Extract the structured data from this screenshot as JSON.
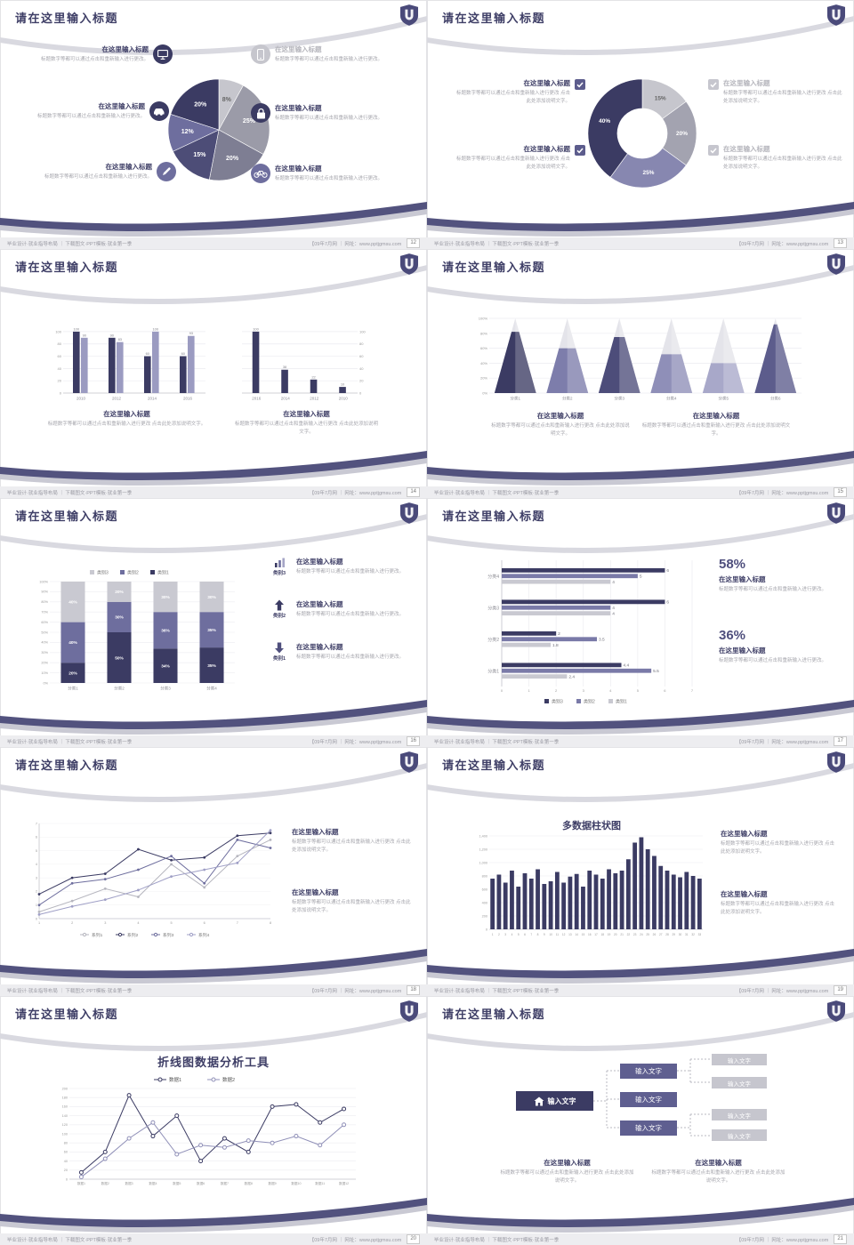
{
  "common": {
    "slide_title": "请在这里输入标题",
    "footer_left": "毕业设计·就业指导布局 ｜ 下载图文·PPT模板·就业第一季",
    "footer_right": "【09年7月网 ｜ 网址：www.pptjgmsu.com",
    "item_title": "在这里输入标题",
    "body_a": "标题数字等都可以通过点击和重新输入进行更改。",
    "body_b": "标题数字等都可以通过点击和重新输入进行更改 点击此处添加说明文字。",
    "input_label": "输入文字"
  },
  "colors": {
    "navy": "#3b3b63",
    "purple": "#6e6e9e",
    "light_purple": "#9b9bc1",
    "gray": "#c6c6cd",
    "accent": "#4f4f7d"
  },
  "slides": [
    {
      "page_no": "12",
      "chart_data": {
        "type": "pie",
        "values": [
          8,
          25,
          20,
          15,
          12,
          20
        ],
        "labels": [
          "8%",
          "25%",
          "20%",
          "15%",
          "12%",
          "20%"
        ],
        "colors": [
          "#c6c6cd",
          "#9b9ba8",
          "#7e7e93",
          "#4d4d77",
          "#6e6e9e",
          "#3b3b63"
        ],
        "label_colors": [
          "#666",
          "#fff",
          "#fff",
          "#fff",
          "#fff",
          "#fff"
        ]
      }
    },
    {
      "page_no": "13",
      "chart_data": {
        "type": "donut",
        "values": [
          15,
          20,
          25,
          40
        ],
        "labels": [
          "15%",
          "20%",
          "25%",
          "40%"
        ],
        "colors": [
          "#c6c6cd",
          "#a3a3b0",
          "#8787b0",
          "#3b3b63"
        ],
        "label_colors": [
          "#666",
          "#fff",
          "#fff",
          "#fff"
        ]
      }
    },
    {
      "page_no": "14",
      "chart_data": [
        {
          "type": "bar",
          "categories": [
            "2010",
            "2012",
            "2014",
            "2016"
          ],
          "series": [
            {
              "name": "系列1",
              "color": "#3b3b63",
              "values": [
                100,
                90,
                60,
                60
              ]
            },
            {
              "name": "系列2",
              "color": "#9b9bc1",
              "values": [
                90,
                83,
                100,
                93
              ]
            }
          ],
          "ylim": [
            0,
            110
          ],
          "yticks": [
            0,
            20,
            40,
            60,
            80,
            100
          ],
          "axis": "left"
        },
        {
          "type": "bar",
          "categories": [
            "2016",
            "2014",
            "2012",
            "2010"
          ],
          "series": [
            {
              "name": "系列1",
              "color": "#3b3b63",
              "values": [
                100,
                38,
                22,
                10
              ]
            }
          ],
          "ylim": [
            0,
            110
          ],
          "yticks": [
            0,
            20,
            40,
            60,
            80,
            100
          ],
          "axis": "right"
        }
      ]
    },
    {
      "page_no": "15",
      "chart_data": {
        "type": "pyramid",
        "categories": [
          "分类1",
          "分类2",
          "分类3",
          "分类4",
          "分类5",
          "分类6"
        ],
        "values": [
          82,
          60,
          75,
          52,
          40,
          92
        ],
        "colors": [
          "#3b3b63",
          "#7d7dab",
          "#4d4d7a",
          "#8f8fb8",
          "#a8a8c9",
          "#5c5c8c"
        ],
        "yticks": [
          "0%",
          "20%",
          "40%",
          "60%",
          "80%",
          "100%"
        ]
      }
    },
    {
      "page_no": "16",
      "side_tags": [
        "类别3",
        "类别2",
        "类别1"
      ],
      "chart_data": {
        "type": "stacked",
        "categories": [
          "分类1",
          "分类2",
          "分类3",
          "分类4"
        ],
        "series": [
          {
            "name": "类别1",
            "color": "#3b3b63",
            "values": [
              20,
              50,
              34,
              35
            ]
          },
          {
            "name": "类别2",
            "color": "#6e6e9e",
            "values": [
              40,
              30,
              36,
              35
            ]
          },
          {
            "name": "类别3",
            "color": "#c9c9d1",
            "values": [
              40,
              20,
              30,
              30
            ]
          }
        ],
        "yticks": [
          "0%",
          "10%",
          "20%",
          "30%",
          "40%",
          "50%",
          "60%",
          "70%",
          "80%",
          "90%",
          "100%"
        ]
      }
    },
    {
      "page_no": "17",
      "stats": [
        {
          "pct": "58%"
        },
        {
          "pct": "36%"
        }
      ],
      "chart_data": {
        "type": "hbar",
        "categories": [
          "分类4",
          "分类3",
          "分类2",
          "分类1"
        ],
        "series": [
          {
            "name": "类别3",
            "color": "#3b3b63",
            "values": [
              6,
              6,
              2,
              4.4
            ]
          },
          {
            "name": "类别2",
            "color": "#7a7aa8",
            "values": [
              5,
              4,
              3.5,
              5.5
            ]
          },
          {
            "name": "类别1",
            "color": "#c9c9d1",
            "values": [
              4,
              4,
              1.8,
              2.4
            ]
          }
        ],
        "xticks": [
          0,
          1,
          2,
          3,
          4,
          5,
          6,
          7
        ]
      }
    },
    {
      "page_no": "18",
      "chart_data": {
        "type": "line",
        "x": [
          1,
          2,
          3,
          4,
          5,
          6,
          7,
          8
        ],
        "ylim": [
          0,
          7
        ],
        "yticks": [
          0,
          1,
          2,
          3,
          4,
          5,
          6,
          7
        ],
        "series": [
          {
            "name": "系列1",
            "color": "#b6b6bf",
            "values": [
              0.5,
              1.3,
              2.2,
              1.6,
              4.0,
              2.3,
              4.6,
              5.8
            ]
          },
          {
            "name": "系列2",
            "color": "#3b3b63",
            "values": [
              1.8,
              3.0,
              3.3,
              5.1,
              4.3,
              4.5,
              6.1,
              6.3
            ]
          },
          {
            "name": "系列3",
            "color": "#6e6e9e",
            "values": [
              1.0,
              2.6,
              2.9,
              3.6,
              4.6,
              2.6,
              5.8,
              5.2
            ]
          },
          {
            "name": "系列4",
            "color": "#9f9fc6",
            "values": [
              0.3,
              0.9,
              1.4,
              2.1,
              3.1,
              3.6,
              4.1,
              6.5
            ]
          }
        ]
      }
    },
    {
      "page_no": "19",
      "chart_data": {
        "type": "column",
        "title": "多数据柱状图",
        "color": "#3b3b63",
        "x_labels": [
          "1",
          "2",
          "3",
          "4",
          "5",
          "6",
          "7",
          "8",
          "9",
          "10",
          "11",
          "12",
          "13",
          "14",
          "15",
          "16",
          "17",
          "18",
          "19",
          "20",
          "21",
          "22",
          "23",
          "24",
          "25",
          "26",
          "27",
          "28",
          "29",
          "30",
          "31",
          "32",
          "33"
        ],
        "values": [
          760,
          820,
          700,
          880,
          640,
          840,
          760,
          900,
          680,
          720,
          860,
          700,
          790,
          830,
          640,
          880,
          820,
          760,
          900,
          840,
          880,
          1050,
          1300,
          1380,
          1200,
          1100,
          950,
          880,
          820,
          780,
          860,
          800,
          760
        ],
        "yticks": [
          0,
          200,
          400,
          600,
          800,
          1000,
          1200,
          1400
        ]
      }
    },
    {
      "page_no": "20",
      "chart_data": {
        "type": "line2",
        "title": "折线图数据分析工具",
        "x_labels": [
          "数据1",
          "数据2",
          "数据3",
          "数据4",
          "数据5",
          "数据6",
          "数据7",
          "数据8",
          "数据9",
          "数据10",
          "数据11",
          "数据12"
        ],
        "yticks": [
          0,
          20,
          40,
          60,
          80,
          100,
          120,
          140,
          160,
          180,
          200
        ],
        "series": [
          {
            "name": "数据1",
            "color": "#3b3b63",
            "values": [
              15,
              60,
              185,
              95,
              140,
              40,
              90,
              60,
              160,
              165,
              125,
              155
            ]
          },
          {
            "name": "数据2",
            "color": "#9090b8",
            "values": [
              5,
              45,
              90,
              125,
              55,
              75,
              70,
              85,
              80,
              95,
              75,
              120
            ]
          }
        ]
      }
    },
    {
      "page_no": "21",
      "flow": {
        "root": "输入文字",
        "mid": [
          "输入文字",
          "输入文字",
          "输入文字"
        ],
        "leaves": [
          "输入文字",
          "输入文字",
          "输入文字",
          "输入文字"
        ]
      }
    }
  ]
}
